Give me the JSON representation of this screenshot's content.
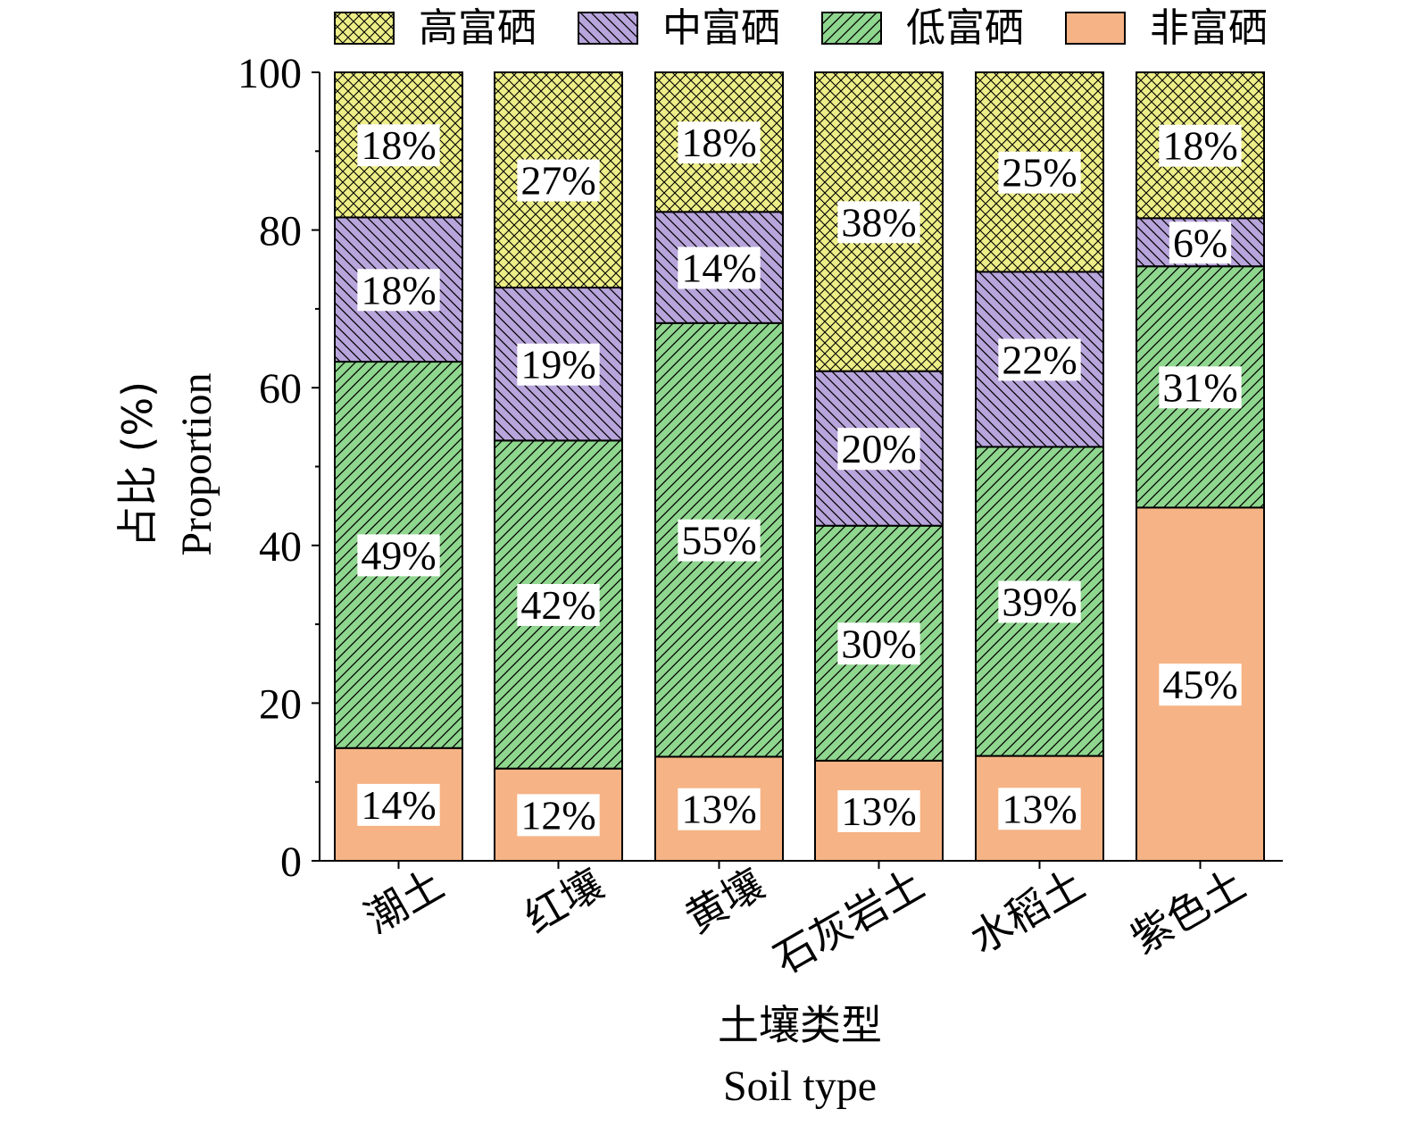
{
  "chart_data": {
    "type": "bar",
    "stacked": true,
    "categories": [
      "潮土",
      "红壤",
      "黄壤",
      "石灰岩土",
      "水稻土",
      "紫色土"
    ],
    "series": [
      {
        "name": "非富硒",
        "values": [
          14.3,
          11.7,
          13.2,
          12.7,
          13.3,
          44.8
        ],
        "labels": [
          "14%",
          "12%",
          "13%",
          "13%",
          "13%",
          "45%"
        ],
        "color": "#F6B385",
        "pattern": "solid"
      },
      {
        "name": "低富硒",
        "values": [
          49.0,
          41.6,
          55.0,
          29.8,
          39.2,
          30.6
        ],
        "labels": [
          "49%",
          "42%",
          "55%",
          "30%",
          "39%",
          "31%"
        ],
        "color": "#8FD68F",
        "pattern": "diagonal"
      },
      {
        "name": "中富硒",
        "values": [
          18.3,
          19.4,
          14.1,
          19.6,
          22.2,
          6.1
        ],
        "labels": [
          "18%",
          "19%",
          "14%",
          "20%",
          "22%",
          "6%"
        ],
        "color": "#B8A5DC",
        "pattern": "back-diagonal"
      },
      {
        "name": "高富硒",
        "values": [
          18.4,
          27.3,
          17.7,
          37.9,
          25.3,
          18.5
        ],
        "labels": [
          "18%",
          "27%",
          "18%",
          "38%",
          "25%",
          "18%"
        ],
        "color": "#EEEE88",
        "pattern": "crosshatch"
      }
    ],
    "legend_order": [
      "高富硒",
      "中富硒",
      "低富硒",
      "非富硒"
    ],
    "legend_position": "top",
    "xlabel": "土壤类型",
    "xlabel_en": "Soil type",
    "ylabel": "占比 (%)",
    "ylabel_en": "Proportion",
    "ylim": [
      0,
      100
    ],
    "yticks": [
      0,
      20,
      40,
      60,
      80,
      100
    ],
    "grid": false
  }
}
